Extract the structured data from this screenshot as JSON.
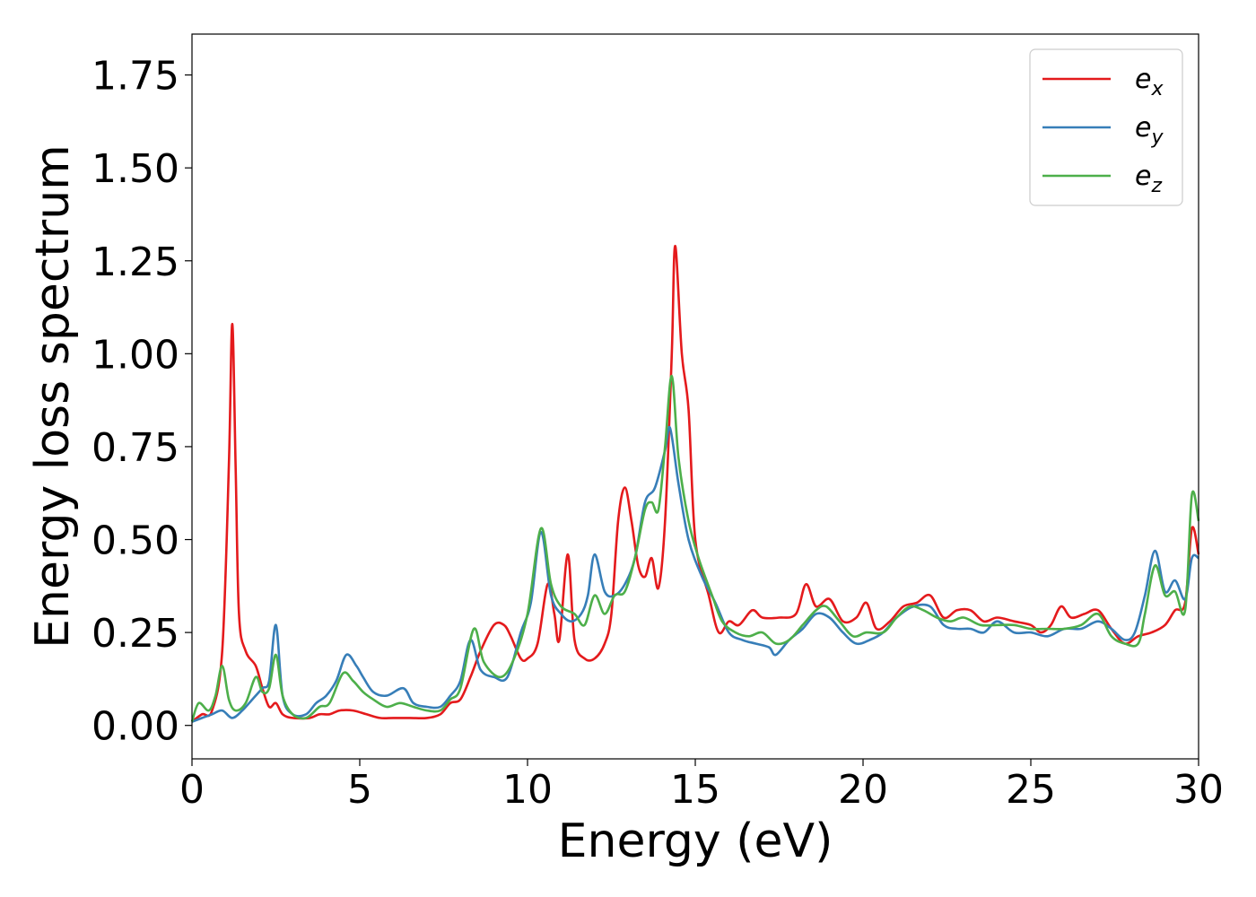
{
  "chart_data": {
    "type": "line",
    "title": "",
    "xlabel": "Energy (eV)",
    "ylabel": "Energy loss spectrum",
    "xlim": [
      0,
      30
    ],
    "ylim": [
      -0.09,
      1.86
    ],
    "xticks": [
      0,
      5,
      10,
      15,
      20,
      25,
      30
    ],
    "xtick_labels": [
      "0",
      "5",
      "10",
      "15",
      "20",
      "25",
      "30"
    ],
    "yticks": [
      0.0,
      0.25,
      0.5,
      0.75,
      1.0,
      1.25,
      1.5,
      1.75
    ],
    "ytick_labels": [
      "0.00",
      "0.25",
      "0.50",
      "0.75",
      "1.00",
      "1.25",
      "1.50",
      "1.75"
    ],
    "grid": false,
    "legend_position": "top-right",
    "series": [
      {
        "name": "e_x",
        "label_base": "e",
        "label_sub": "x",
        "color": "#e41a1c",
        "points": [
          [
            0,
            0.01
          ],
          [
            0.3,
            0.03
          ],
          [
            0.6,
            0.04
          ],
          [
            0.9,
            0.2
          ],
          [
            1.1,
            0.7
          ],
          [
            1.2,
            1.08
          ],
          [
            1.3,
            0.7
          ],
          [
            1.4,
            0.3
          ],
          [
            1.6,
            0.2
          ],
          [
            1.9,
            0.16
          ],
          [
            2.1,
            0.1
          ],
          [
            2.3,
            0.05
          ],
          [
            2.5,
            0.06
          ],
          [
            2.7,
            0.03
          ],
          [
            3.0,
            0.02
          ],
          [
            3.5,
            0.02
          ],
          [
            3.8,
            0.03
          ],
          [
            4.1,
            0.03
          ],
          [
            4.4,
            0.04
          ],
          [
            4.8,
            0.04
          ],
          [
            5.2,
            0.03
          ],
          [
            5.6,
            0.02
          ],
          [
            6.0,
            0.02
          ],
          [
            6.5,
            0.02
          ],
          [
            7.0,
            0.02
          ],
          [
            7.4,
            0.03
          ],
          [
            7.7,
            0.06
          ],
          [
            8.0,
            0.07
          ],
          [
            8.3,
            0.13
          ],
          [
            8.6,
            0.2
          ],
          [
            9.0,
            0.27
          ],
          [
            9.3,
            0.27
          ],
          [
            9.5,
            0.24
          ],
          [
            9.8,
            0.18
          ],
          [
            10.0,
            0.18
          ],
          [
            10.3,
            0.22
          ],
          [
            10.6,
            0.38
          ],
          [
            10.8,
            0.3
          ],
          [
            10.95,
            0.23
          ],
          [
            11.2,
            0.46
          ],
          [
            11.4,
            0.23
          ],
          [
            11.7,
            0.18
          ],
          [
            12.0,
            0.18
          ],
          [
            12.3,
            0.22
          ],
          [
            12.5,
            0.3
          ],
          [
            12.7,
            0.55
          ],
          [
            12.9,
            0.64
          ],
          [
            13.1,
            0.55
          ],
          [
            13.3,
            0.43
          ],
          [
            13.5,
            0.4
          ],
          [
            13.7,
            0.45
          ],
          [
            13.9,
            0.37
          ],
          [
            14.1,
            0.55
          ],
          [
            14.3,
            1.0
          ],
          [
            14.4,
            1.29
          ],
          [
            14.6,
            1.0
          ],
          [
            14.8,
            0.85
          ],
          [
            15.0,
            0.5
          ],
          [
            15.4,
            0.35
          ],
          [
            15.7,
            0.25
          ],
          [
            16.0,
            0.28
          ],
          [
            16.3,
            0.27
          ],
          [
            16.7,
            0.31
          ],
          [
            17.0,
            0.29
          ],
          [
            17.5,
            0.29
          ],
          [
            18.0,
            0.3
          ],
          [
            18.3,
            0.38
          ],
          [
            18.6,
            0.32
          ],
          [
            19.0,
            0.34
          ],
          [
            19.4,
            0.28
          ],
          [
            19.8,
            0.29
          ],
          [
            20.1,
            0.33
          ],
          [
            20.4,
            0.26
          ],
          [
            20.8,
            0.28
          ],
          [
            21.2,
            0.32
          ],
          [
            21.6,
            0.33
          ],
          [
            22.0,
            0.35
          ],
          [
            22.4,
            0.29
          ],
          [
            22.8,
            0.31
          ],
          [
            23.2,
            0.31
          ],
          [
            23.6,
            0.28
          ],
          [
            24.0,
            0.29
          ],
          [
            24.5,
            0.28
          ],
          [
            25.0,
            0.27
          ],
          [
            25.3,
            0.25
          ],
          [
            25.6,
            0.27
          ],
          [
            25.9,
            0.32
          ],
          [
            26.2,
            0.29
          ],
          [
            26.6,
            0.3
          ],
          [
            27.0,
            0.31
          ],
          [
            27.4,
            0.26
          ],
          [
            27.8,
            0.22
          ],
          [
            28.2,
            0.24
          ],
          [
            28.6,
            0.25
          ],
          [
            29.0,
            0.27
          ],
          [
            29.3,
            0.31
          ],
          [
            29.6,
            0.33
          ],
          [
            29.8,
            0.53
          ],
          [
            30.0,
            0.46
          ]
        ]
      },
      {
        "name": "e_y",
        "label_base": "e",
        "label_sub": "y",
        "color": "#377eb8",
        "points": [
          [
            0,
            0.01
          ],
          [
            0.3,
            0.02
          ],
          [
            0.6,
            0.03
          ],
          [
            0.9,
            0.04
          ],
          [
            1.2,
            0.02
          ],
          [
            1.5,
            0.04
          ],
          [
            1.8,
            0.07
          ],
          [
            2.1,
            0.1
          ],
          [
            2.3,
            0.12
          ],
          [
            2.5,
            0.27
          ],
          [
            2.7,
            0.08
          ],
          [
            3.0,
            0.03
          ],
          [
            3.4,
            0.03
          ],
          [
            3.7,
            0.06
          ],
          [
            4.0,
            0.08
          ],
          [
            4.3,
            0.12
          ],
          [
            4.6,
            0.19
          ],
          [
            4.9,
            0.16
          ],
          [
            5.1,
            0.13
          ],
          [
            5.4,
            0.09
          ],
          [
            5.8,
            0.08
          ],
          [
            6.3,
            0.1
          ],
          [
            6.6,
            0.06
          ],
          [
            7.0,
            0.05
          ],
          [
            7.4,
            0.05
          ],
          [
            7.7,
            0.08
          ],
          [
            8.0,
            0.12
          ],
          [
            8.3,
            0.23
          ],
          [
            8.6,
            0.15
          ],
          [
            9.0,
            0.13
          ],
          [
            9.4,
            0.13
          ],
          [
            9.8,
            0.25
          ],
          [
            10.1,
            0.33
          ],
          [
            10.4,
            0.52
          ],
          [
            10.7,
            0.35
          ],
          [
            11.0,
            0.3
          ],
          [
            11.3,
            0.28
          ],
          [
            11.6,
            0.3
          ],
          [
            11.8,
            0.35
          ],
          [
            12.0,
            0.46
          ],
          [
            12.3,
            0.36
          ],
          [
            12.6,
            0.35
          ],
          [
            12.9,
            0.38
          ],
          [
            13.2,
            0.45
          ],
          [
            13.5,
            0.6
          ],
          [
            13.8,
            0.64
          ],
          [
            14.1,
            0.74
          ],
          [
            14.25,
            0.8
          ],
          [
            14.5,
            0.65
          ],
          [
            14.8,
            0.5
          ],
          [
            15.2,
            0.4
          ],
          [
            15.6,
            0.33
          ],
          [
            16.0,
            0.25
          ],
          [
            16.4,
            0.23
          ],
          [
            16.8,
            0.22
          ],
          [
            17.2,
            0.21
          ],
          [
            17.4,
            0.19
          ],
          [
            17.8,
            0.23
          ],
          [
            18.2,
            0.26
          ],
          [
            18.6,
            0.3
          ],
          [
            19.0,
            0.29
          ],
          [
            19.4,
            0.25
          ],
          [
            19.8,
            0.22
          ],
          [
            20.2,
            0.23
          ],
          [
            20.6,
            0.25
          ],
          [
            21.0,
            0.29
          ],
          [
            21.5,
            0.32
          ],
          [
            22.0,
            0.32
          ],
          [
            22.4,
            0.27
          ],
          [
            22.8,
            0.26
          ],
          [
            23.2,
            0.26
          ],
          [
            23.6,
            0.25
          ],
          [
            24.0,
            0.28
          ],
          [
            24.5,
            0.25
          ],
          [
            25.0,
            0.25
          ],
          [
            25.5,
            0.24
          ],
          [
            26.0,
            0.26
          ],
          [
            26.5,
            0.26
          ],
          [
            27.0,
            0.28
          ],
          [
            27.4,
            0.26
          ],
          [
            27.8,
            0.23
          ],
          [
            28.1,
            0.25
          ],
          [
            28.4,
            0.35
          ],
          [
            28.7,
            0.47
          ],
          [
            29.0,
            0.36
          ],
          [
            29.3,
            0.39
          ],
          [
            29.6,
            0.34
          ],
          [
            29.8,
            0.45
          ],
          [
            30.0,
            0.45
          ]
        ]
      },
      {
        "name": "e_z",
        "label_base": "e",
        "label_sub": "z",
        "color": "#4daf4a",
        "points": [
          [
            0,
            0.01
          ],
          [
            0.2,
            0.06
          ],
          [
            0.5,
            0.04
          ],
          [
            0.7,
            0.08
          ],
          [
            0.9,
            0.16
          ],
          [
            1.1,
            0.07
          ],
          [
            1.3,
            0.04
          ],
          [
            1.6,
            0.06
          ],
          [
            1.9,
            0.13
          ],
          [
            2.1,
            0.09
          ],
          [
            2.3,
            0.1
          ],
          [
            2.5,
            0.19
          ],
          [
            2.7,
            0.08
          ],
          [
            3.0,
            0.03
          ],
          [
            3.4,
            0.02
          ],
          [
            3.8,
            0.05
          ],
          [
            4.1,
            0.06
          ],
          [
            4.5,
            0.14
          ],
          [
            4.8,
            0.12
          ],
          [
            5.1,
            0.09
          ],
          [
            5.4,
            0.07
          ],
          [
            5.8,
            0.05
          ],
          [
            6.2,
            0.06
          ],
          [
            6.6,
            0.05
          ],
          [
            7.0,
            0.04
          ],
          [
            7.4,
            0.04
          ],
          [
            7.7,
            0.07
          ],
          [
            8.0,
            0.1
          ],
          [
            8.4,
            0.26
          ],
          [
            8.7,
            0.17
          ],
          [
            9.2,
            0.13
          ],
          [
            9.6,
            0.18
          ],
          [
            10.0,
            0.3
          ],
          [
            10.4,
            0.53
          ],
          [
            10.7,
            0.38
          ],
          [
            11.0,
            0.32
          ],
          [
            11.4,
            0.3
          ],
          [
            11.7,
            0.27
          ],
          [
            12.0,
            0.35
          ],
          [
            12.3,
            0.3
          ],
          [
            12.6,
            0.35
          ],
          [
            12.9,
            0.36
          ],
          [
            13.2,
            0.45
          ],
          [
            13.5,
            0.58
          ],
          [
            13.7,
            0.6
          ],
          [
            13.9,
            0.58
          ],
          [
            14.1,
            0.75
          ],
          [
            14.3,
            0.94
          ],
          [
            14.5,
            0.72
          ],
          [
            14.8,
            0.55
          ],
          [
            15.1,
            0.45
          ],
          [
            15.5,
            0.35
          ],
          [
            15.8,
            0.28
          ],
          [
            16.2,
            0.25
          ],
          [
            16.6,
            0.24
          ],
          [
            17.0,
            0.25
          ],
          [
            17.4,
            0.22
          ],
          [
            17.8,
            0.23
          ],
          [
            18.2,
            0.27
          ],
          [
            18.6,
            0.31
          ],
          [
            18.9,
            0.32
          ],
          [
            19.3,
            0.28
          ],
          [
            19.7,
            0.24
          ],
          [
            20.1,
            0.25
          ],
          [
            20.6,
            0.25
          ],
          [
            21.0,
            0.29
          ],
          [
            21.4,
            0.32
          ],
          [
            21.8,
            0.31
          ],
          [
            22.2,
            0.29
          ],
          [
            22.6,
            0.28
          ],
          [
            23.0,
            0.29
          ],
          [
            23.5,
            0.27
          ],
          [
            24.0,
            0.27
          ],
          [
            24.5,
            0.27
          ],
          [
            25.0,
            0.26
          ],
          [
            25.5,
            0.26
          ],
          [
            26.0,
            0.26
          ],
          [
            26.5,
            0.27
          ],
          [
            27.0,
            0.3
          ],
          [
            27.4,
            0.24
          ],
          [
            27.8,
            0.22
          ],
          [
            28.2,
            0.22
          ],
          [
            28.4,
            0.3
          ],
          [
            28.7,
            0.43
          ],
          [
            29.0,
            0.35
          ],
          [
            29.3,
            0.36
          ],
          [
            29.6,
            0.31
          ],
          [
            29.8,
            0.62
          ],
          [
            30.0,
            0.55
          ]
        ]
      }
    ]
  }
}
